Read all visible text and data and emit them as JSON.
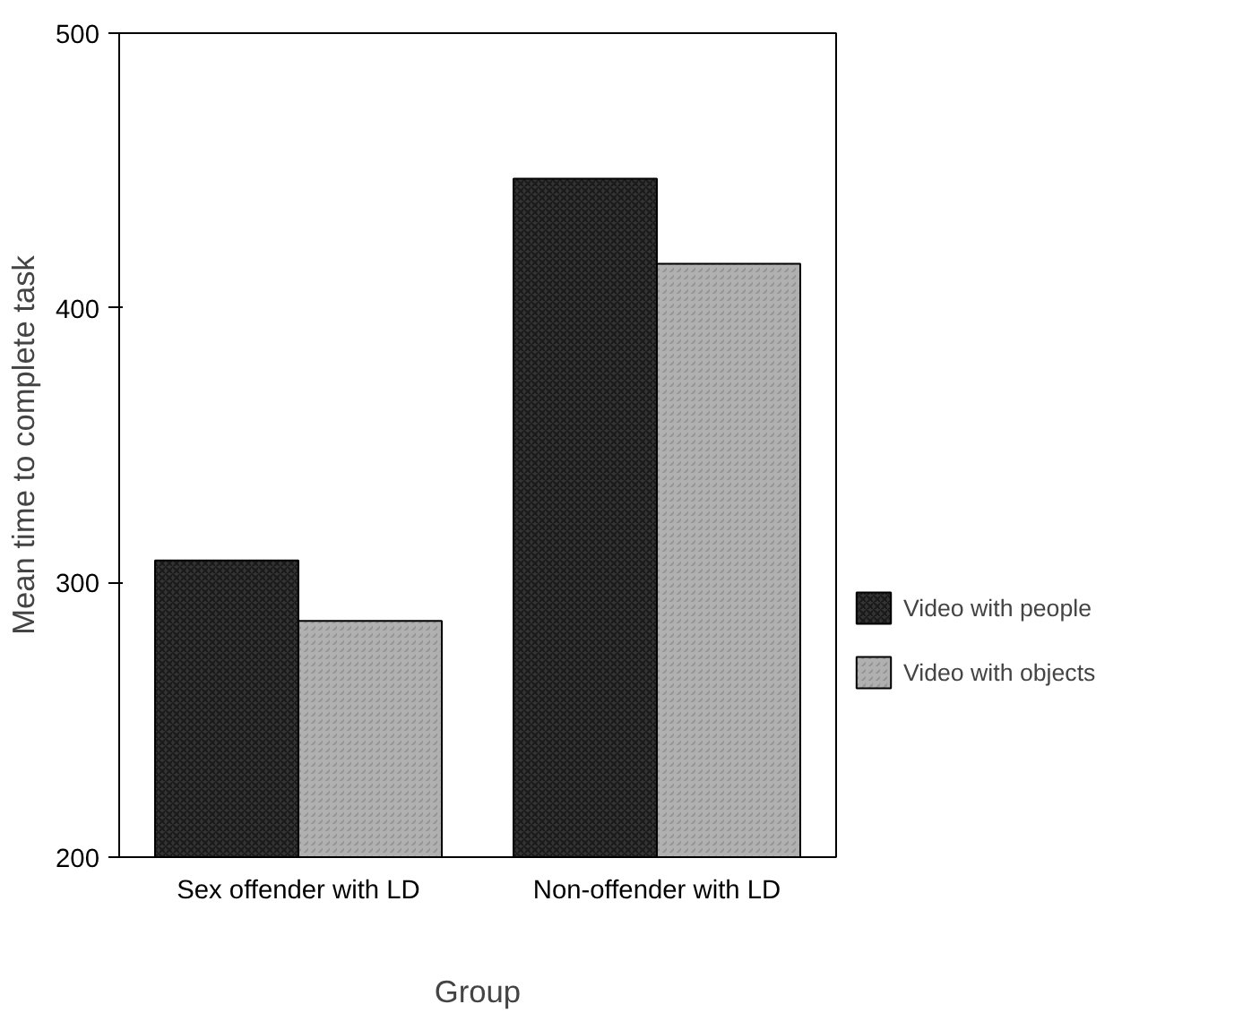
{
  "chart_data": {
    "type": "bar",
    "xlabel": "Group",
    "ylabel": "Mean time to complete task",
    "categories": [
      "Sex offender with LD",
      "Non-offender with LD"
    ],
    "series": [
      {
        "name": "Video with people",
        "color": "#333333",
        "values": [
          308,
          447
        ]
      },
      {
        "name": "Video with objects",
        "color": "#b0b0b0",
        "values": [
          286,
          416
        ]
      }
    ],
    "ylim": [
      200,
      500
    ],
    "yticks": [
      200,
      300,
      400,
      500
    ],
    "grid": false,
    "legend": "bottom right"
  }
}
